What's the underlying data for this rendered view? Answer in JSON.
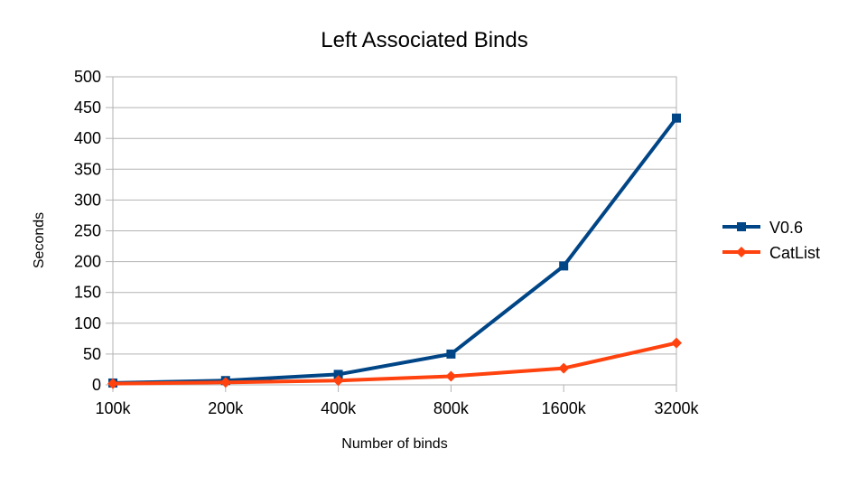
{
  "chart_data": {
    "type": "line",
    "title": "Left Associated Binds",
    "xlabel": "Number of binds",
    "ylabel": "Seconds",
    "categories": [
      "100k",
      "200k",
      "400k",
      "800k",
      "1600k",
      "3200k"
    ],
    "ylim": [
      0,
      500
    ],
    "yticks": [
      0,
      50,
      100,
      150,
      200,
      250,
      300,
      350,
      400,
      450,
      500
    ],
    "grid": true,
    "legend_position": "right",
    "series": [
      {
        "name": "V0.6",
        "values": [
          3,
          7,
          17,
          50,
          193,
          433
        ],
        "color": "#004586",
        "marker": "square"
      },
      {
        "name": "CatList",
        "values": [
          2,
          4,
          7,
          14,
          27,
          68
        ],
        "color": "#ff420e",
        "marker": "diamond"
      }
    ]
  }
}
